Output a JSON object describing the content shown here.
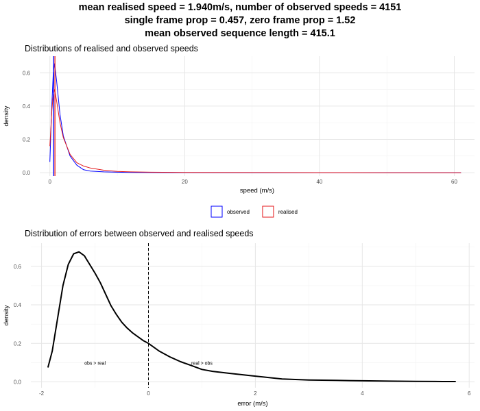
{
  "header": {
    "line1": "mean realised speed = 1.940m/s, number of observed speeds = 4151",
    "line2": "single frame prop = 0.457, zero frame prop = 1.52",
    "line3": "mean observed sequence length = 415.1"
  },
  "chart_data": [
    {
      "type": "line",
      "title": "Distributions of realised and observed speeds",
      "xlabel": "speed (m/s)",
      "ylabel": "density",
      "xlim": [
        -1.5,
        63
      ],
      "ylim": [
        -0.02,
        0.7
      ],
      "xticks": [
        "0",
        "20",
        "40",
        "60"
      ],
      "yticks": [
        "0.0",
        "0.2",
        "0.4",
        "0.6"
      ],
      "grid": true,
      "legend_position": "bottom",
      "series": [
        {
          "name": "observed",
          "color": "#0000ff",
          "x": [
            0,
            0.3,
            0.5,
            0.7,
            1.0,
            1.5,
            2.0,
            3.0,
            4.0,
            5.0,
            6.0,
            8.0,
            10.0,
            12.0,
            15.0,
            20.0,
            30.0,
            40.0,
            50.0,
            61.0
          ],
          "y": [
            0.065,
            0.42,
            0.6,
            0.655,
            0.55,
            0.35,
            0.22,
            0.1,
            0.045,
            0.018,
            0.01,
            0.005,
            0.003,
            0.002,
            0.001,
            0.0005,
            0.0003,
            0.0002,
            0.0001,
            0.0001
          ]
        },
        {
          "name": "realised",
          "color": "#e41a1c",
          "x": [
            0,
            0.3,
            0.5,
            0.7,
            1.0,
            1.5,
            2.0,
            3.0,
            4.0,
            5.0,
            6.0,
            8.0,
            10.0,
            12.0,
            15.0,
            20.0,
            30.0,
            40.0,
            50.0,
            61.0
          ],
          "y": [
            0.16,
            0.38,
            0.47,
            0.5,
            0.43,
            0.3,
            0.21,
            0.11,
            0.06,
            0.04,
            0.028,
            0.015,
            0.008,
            0.005,
            0.003,
            0.002,
            0.001,
            0.0005,
            0.0003,
            0.0002
          ]
        }
      ],
      "vlines": [
        {
          "x": 0.55,
          "color": "#0000ff"
        },
        {
          "x": 0.75,
          "color": "#e41a1c"
        }
      ]
    },
    {
      "type": "line",
      "title": "Distribution of errors between observed and realised speeds",
      "xlabel": "error (m/s)",
      "ylabel": "density",
      "xlim": [
        -2.2,
        6.1
      ],
      "ylim": [
        -0.03,
        0.72
      ],
      "xticks": [
        "-2",
        "0",
        "2",
        "4",
        "6"
      ],
      "yticks": [
        "0.0",
        "0.2",
        "0.4",
        "0.6"
      ],
      "grid": true,
      "series": [
        {
          "color": "#000000",
          "x": [
            -1.88,
            -1.8,
            -1.7,
            -1.6,
            -1.5,
            -1.4,
            -1.3,
            -1.2,
            -1.1,
            -1.0,
            -0.9,
            -0.8,
            -0.7,
            -0.6,
            -0.5,
            -0.4,
            -0.3,
            -0.2,
            -0.1,
            0.0,
            0.2,
            0.4,
            0.6,
            0.8,
            1.0,
            1.2,
            1.5,
            2.0,
            2.5,
            3.0,
            3.5,
            4.0,
            4.5,
            5.0,
            5.5,
            5.75
          ],
          "y": [
            0.075,
            0.16,
            0.33,
            0.5,
            0.61,
            0.665,
            0.675,
            0.655,
            0.61,
            0.565,
            0.515,
            0.455,
            0.395,
            0.35,
            0.31,
            0.28,
            0.255,
            0.235,
            0.215,
            0.2,
            0.16,
            0.13,
            0.105,
            0.085,
            0.065,
            0.055,
            0.045,
            0.03,
            0.015,
            0.01,
            0.008,
            0.006,
            0.004,
            0.003,
            0.002,
            0.002
          ]
        }
      ],
      "vline": {
        "x": 0,
        "style": "dashed"
      },
      "annotations": [
        {
          "text": "obs > real",
          "x": -1.0,
          "y": 0.1
        },
        {
          "text": "real > obs",
          "x": 1.0,
          "y": 0.1
        }
      ]
    }
  ]
}
